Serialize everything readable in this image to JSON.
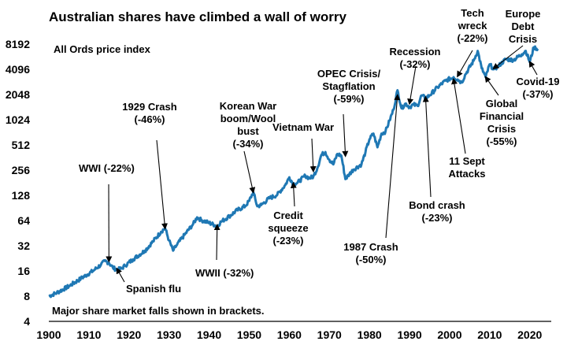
{
  "chart_data": {
    "type": "line",
    "title": "Australian shares have climbed a wall of worry",
    "subtitle": "All Ords price index",
    "footnote": "Major share market falls shown in brackets.",
    "y_scale": "log2",
    "ylim": [
      4,
      10000
    ],
    "xlim": [
      1900,
      2023
    ],
    "y_ticks": [
      4,
      8,
      16,
      32,
      64,
      128,
      256,
      512,
      1024,
      2048,
      4096,
      8192
    ],
    "x_ticks": [
      1900,
      1910,
      1920,
      1930,
      1940,
      1950,
      1960,
      1970,
      1980,
      1990,
      2000,
      2010,
      2020
    ],
    "line_color": "#1f78b4",
    "series": [
      {
        "name": "",
        "points": [
          [
            1900,
            8
          ],
          [
            1902,
            8.8
          ],
          [
            1905,
            10.5
          ],
          [
            1908,
            13
          ],
          [
            1911,
            16
          ],
          [
            1913,
            19
          ],
          [
            1914,
            21
          ],
          [
            1915,
            20
          ],
          [
            1916,
            17.5
          ],
          [
            1917,
            16.5
          ],
          [
            1918,
            17
          ],
          [
            1919,
            18.5
          ],
          [
            1921,
            22
          ],
          [
            1924,
            28
          ],
          [
            1926,
            36
          ],
          [
            1928,
            47
          ],
          [
            1929,
            52
          ],
          [
            1930,
            37
          ],
          [
            1931,
            28
          ],
          [
            1932,
            33
          ],
          [
            1934,
            44
          ],
          [
            1936,
            58
          ],
          [
            1937,
            70
          ],
          [
            1938,
            65
          ],
          [
            1940,
            60
          ],
          [
            1942,
            55
          ],
          [
            1943,
            62
          ],
          [
            1945,
            72
          ],
          [
            1947,
            85
          ],
          [
            1949,
            95
          ],
          [
            1950,
            110
          ],
          [
            1951,
            140
          ],
          [
            1952,
            95
          ],
          [
            1953,
            98
          ],
          [
            1955,
            118
          ],
          [
            1957,
            130
          ],
          [
            1959,
            170
          ],
          [
            1960,
            210
          ],
          [
            1961,
            175
          ],
          [
            1962,
            180
          ],
          [
            1964,
            220
          ],
          [
            1965,
            205
          ],
          [
            1966,
            215
          ],
          [
            1967,
            270
          ],
          [
            1968,
            390
          ],
          [
            1969,
            420
          ],
          [
            1970,
            340
          ],
          [
            1971,
            300
          ],
          [
            1972,
            400
          ],
          [
            1973,
            380
          ],
          [
            1974,
            200
          ],
          [
            1975,
            230
          ],
          [
            1976,
            260
          ],
          [
            1978,
            300
          ],
          [
            1979,
            420
          ],
          [
            1980,
            600
          ],
          [
            1981,
            700
          ],
          [
            1982,
            480
          ],
          [
            1983,
            700
          ],
          [
            1984,
            740
          ],
          [
            1985,
            1000
          ],
          [
            1986,
            1350
          ],
          [
            1987,
            2300
          ],
          [
            1988,
            1400
          ],
          [
            1989,
            1600
          ],
          [
            1990,
            1450
          ],
          [
            1991,
            1550
          ],
          [
            1992,
            1500
          ],
          [
            1993,
            2000
          ],
          [
            1994,
            1850
          ],
          [
            1995,
            2000
          ],
          [
            1997,
            2500
          ],
          [
            1999,
            3000
          ],
          [
            2001,
            3300
          ],
          [
            2002,
            3100
          ],
          [
            2003,
            2850
          ],
          [
            2004,
            3600
          ],
          [
            2006,
            5200
          ],
          [
            2007,
            6800
          ],
          [
            2008,
            4200
          ],
          [
            2009,
            3300
          ],
          [
            2010,
            4700
          ],
          [
            2011,
            4100
          ],
          [
            2012,
            4400
          ],
          [
            2014,
            5400
          ],
          [
            2016,
            5300
          ],
          [
            2018,
            6200
          ],
          [
            2019,
            6800
          ],
          [
            2020,
            5000
          ],
          [
            2021,
            7500
          ],
          [
            2022,
            7200
          ]
        ]
      }
    ],
    "annotations": [
      {
        "id": "wwi",
        "lines": [
          "WWI (-22%)"
        ],
        "at": [
          1915,
          21
        ]
      },
      {
        "id": "spanish-flu",
        "lines": [
          "Spanish flu"
        ],
        "at": [
          1917,
          17
        ]
      },
      {
        "id": "crash-1929",
        "lines": [
          "1929 Crash",
          "(-46%)"
        ],
        "at": [
          1929,
          52
        ]
      },
      {
        "id": "wwii",
        "lines": [
          "WWII (-32%)"
        ],
        "at": [
          1942,
          56
        ]
      },
      {
        "id": "korean-war",
        "lines": [
          "Korean War",
          "boom/Wool",
          "bust",
          "(-34%)"
        ],
        "at": [
          1951,
          140
        ]
      },
      {
        "id": "credit-squeeze",
        "lines": [
          "Credit",
          "squeeze",
          "(-23%)"
        ],
        "at": [
          1961,
          178
        ]
      },
      {
        "id": "vietnam-war",
        "lines": [
          "Vietnam War"
        ],
        "at": [
          1966,
          250
        ]
      },
      {
        "id": "opec",
        "lines": [
          "OPEC Crisis/",
          "Stagflation",
          "(-59%)"
        ],
        "at": [
          1974,
          380
        ]
      },
      {
        "id": "crash-1987",
        "lines": [
          "1987 Crash",
          "(-50%)"
        ],
        "at": [
          1987,
          2000
        ]
      },
      {
        "id": "recession",
        "lines": [
          "Recession",
          "(-32%)"
        ],
        "at": [
          1990,
          1600
        ]
      },
      {
        "id": "bond-crash",
        "lines": [
          "Bond crash",
          "(-23%)"
        ],
        "at": [
          1994,
          1900
        ]
      },
      {
        "id": "tech-wreck",
        "lines": [
          "Tech",
          "wreck",
          "(-22%)"
        ],
        "at": [
          2002,
          3400
        ]
      },
      {
        "id": "sept-11",
        "lines": [
          "11 Sept",
          "Attacks"
        ],
        "at": [
          2001,
          3100
        ]
      },
      {
        "id": "gfc",
        "lines": [
          "Global",
          "Financial",
          "Crisis",
          "(-55%)"
        ],
        "at": [
          2009,
          3300
        ]
      },
      {
        "id": "europe-debt",
        "lines": [
          "Europe",
          "Debt",
          "Crisis"
        ],
        "at": [
          2011,
          4200
        ]
      },
      {
        "id": "covid",
        "lines": [
          "Covid-19",
          "(-37%)"
        ],
        "at": [
          2020,
          5000
        ]
      }
    ]
  }
}
